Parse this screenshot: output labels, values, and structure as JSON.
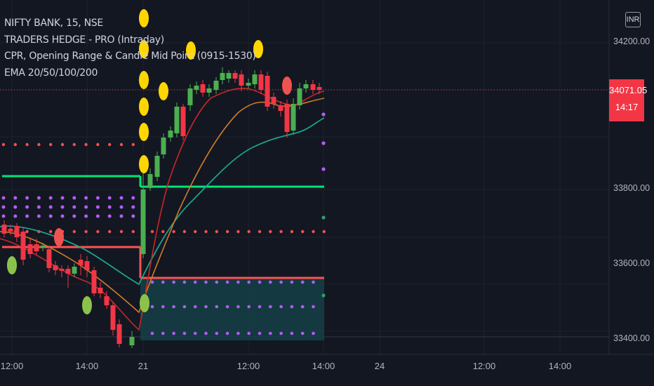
{
  "legend": {
    "symbol_line": "NIFTY BANK, 15, NSE",
    "indicator1": "TRADERS HEDGE - PRO (Intraday)",
    "indicator2": "CPR, Opening Range & Candle Mid Point (0915-1530)",
    "indicator3": "EMA 20/50/100/200"
  },
  "currency": "INR",
  "last_price": {
    "value": "34071.05",
    "countdown": "14:17"
  },
  "price_axis": [
    "34200.00",
    "33800.00",
    "33600.00",
    "33400.00"
  ],
  "time_axis": [
    "12:00",
    "14:00",
    "21",
    "12:00",
    "14:00",
    "24",
    "12:00",
    "14:00"
  ],
  "colors": {
    "background": "#131722",
    "bull": "#4caf50",
    "bear": "#f23645",
    "signal_yellow": "#ffd600",
    "signal_red": "#ef5350",
    "signal_green": "#8bc34a",
    "pivot_dots": "#b45cf5",
    "resistance_dots": "#f05252",
    "level_green": "#00e676",
    "level_red": "#ff5252",
    "ema_teal": "#1aa38b",
    "ema_orange": "#d17b2a",
    "ema_red": "#c62828",
    "zone_fill": "#17424a",
    "grid": "#1e222d"
  }
}
